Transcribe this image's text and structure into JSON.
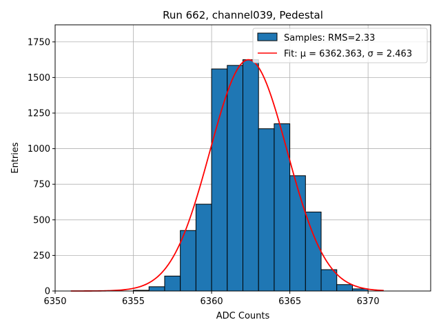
{
  "chart_data": {
    "type": "bar",
    "title": "Run 662, channel039, Pedestal",
    "xlabel": "ADC Counts",
    "ylabel": "Entries",
    "xlim": [
      6350,
      6374
    ],
    "ylim": [
      0,
      1870
    ],
    "xticks": [
      6350,
      6355,
      6360,
      6365,
      6370
    ],
    "yticks": [
      0,
      250,
      500,
      750,
      1000,
      1250,
      1500,
      1750
    ],
    "grid": true,
    "legend_position": "top-right",
    "bin_edges": [
      6351,
      6352,
      6353,
      6354,
      6355,
      6356,
      6357,
      6358,
      6359,
      6360,
      6361,
      6362,
      6363,
      6364,
      6365,
      6366,
      6367,
      6368,
      6369,
      6370,
      6371
    ],
    "values": [
      0,
      0,
      0,
      0,
      5,
      30,
      105,
      425,
      610,
      1560,
      1585,
      1625,
      1140,
      1175,
      810,
      555,
      150,
      45,
      15,
      0
    ],
    "series": [
      {
        "name": "Samples: RMS=2.33",
        "kind": "histogram",
        "color": "#1f77b4",
        "edgecolor": "#000000"
      },
      {
        "name": "Fit: μ = 6362.363, σ = 2.463",
        "kind": "gaussian-fit",
        "color": "#ff0000",
        "mu": 6362.363,
        "sigma": 2.463,
        "amplitude": 1625,
        "x_range": [
          6351,
          6371
        ]
      }
    ]
  }
}
